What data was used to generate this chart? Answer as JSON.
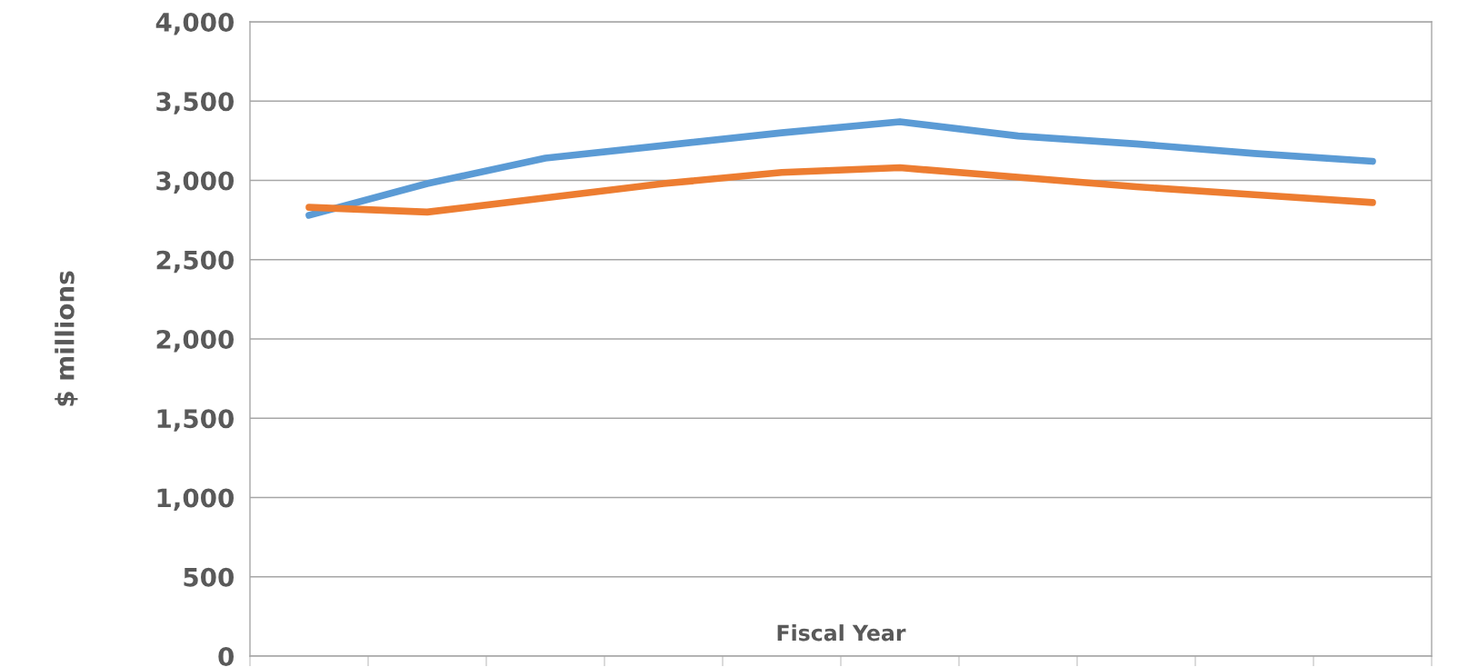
{
  "chart_data": {
    "type": "line",
    "xlabel": "Fiscal Year",
    "ylabel": "$ millions",
    "categories": [
      null,
      null,
      null,
      null,
      null,
      null,
      null,
      null,
      null,
      null
    ],
    "series": [
      {
        "color": "#5b9bd5",
        "values": [
          2780,
          2980,
          3140,
          3220,
          3300,
          3370,
          3280,
          3230,
          3170,
          3120
        ]
      },
      {
        "color": "#ed7d31",
        "values": [
          2830,
          2800,
          2890,
          2980,
          3050,
          3080,
          3020,
          2960,
          2910,
          2860
        ]
      }
    ],
    "ylim": [
      0,
      4000
    ],
    "yticks": [
      0,
      500,
      {
        "value": 1000,
        "label": "1,000"
      },
      {
        "value": 1500,
        "label": "1,500"
      },
      {
        "value": 2000,
        "label": "2,000"
      },
      {
        "value": 2500,
        "label": "2,500"
      },
      {
        "value": 3000,
        "label": "3,000"
      },
      {
        "value": 3500,
        "label": "3,500"
      },
      {
        "value": 4000,
        "label": "4,000"
      }
    ],
    "grid": "y",
    "legend": false,
    "marker": "none",
    "line_style": "solid"
  }
}
